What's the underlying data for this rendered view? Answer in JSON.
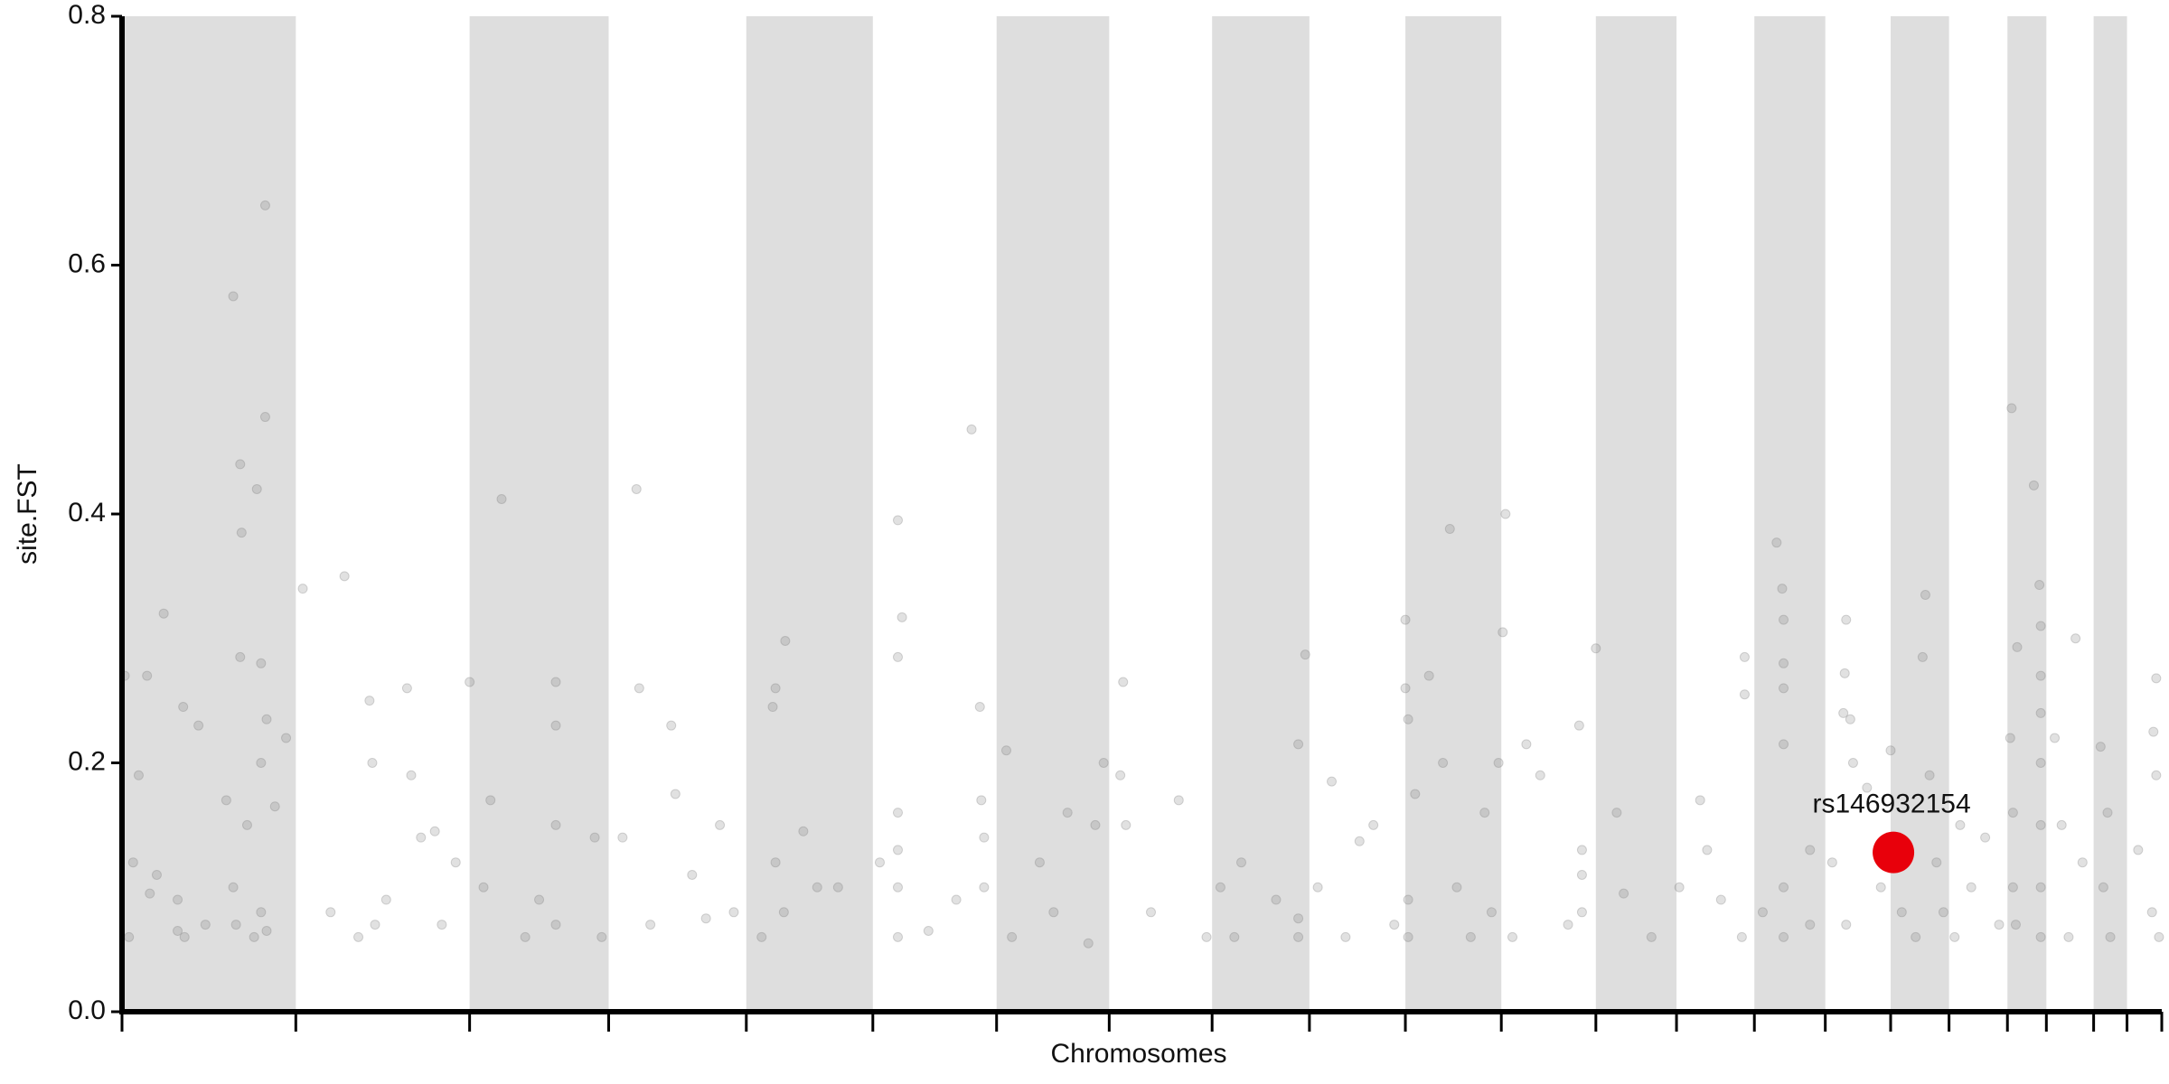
{
  "chart_data": {
    "type": "scatter",
    "xlabel": "Chromosomes",
    "ylabel": "site.FST",
    "xlim": [
      0,
      1467
    ],
    "ylim": [
      0,
      0.8
    ],
    "yticks": [
      {
        "value": 0,
        "label": "0.0"
      },
      0.2,
      0.4,
      0.6,
      0.8
    ],
    "xticks": [
      0,
      125,
      250,
      350,
      449,
      540,
      629,
      710,
      784,
      854,
      923,
      992,
      1060,
      1118,
      1174,
      1225,
      1272,
      1314,
      1356,
      1384,
      1418,
      1442,
      1467
    ],
    "band_color": "#dedede",
    "color": "#777777",
    "x": [
      2,
      5,
      8,
      12,
      18,
      25,
      30,
      40,
      44,
      55,
      45,
      80,
      85,
      86,
      85,
      97,
      100,
      103,
      103,
      104,
      118,
      80,
      82,
      100,
      104,
      95,
      60,
      40,
      20,
      110,
      100,
      90,
      75,
      130,
      160,
      178,
      180,
      182,
      205,
      208,
      215,
      225,
      240,
      170,
      190,
      230,
      150,
      250,
      273,
      265,
      312,
      312,
      312,
      312,
      290,
      340,
      345,
      260,
      300,
      370,
      372,
      380,
      395,
      398,
      410,
      430,
      440,
      360,
      420,
      470,
      477,
      468,
      476,
      470,
      460,
      500,
      515,
      490,
      558,
      561,
      558,
      558,
      558,
      558,
      558,
      545,
      580,
      600,
      620,
      611,
      617,
      618,
      636,
      620,
      640,
      660,
      680,
      700,
      670,
      695,
      720,
      718,
      722,
      706,
      740,
      760,
      780,
      790,
      800,
      805,
      846,
      851,
      846,
      830,
      846,
      860,
      890,
      900,
      915,
      880,
      870,
      923,
      923,
      925,
      930,
      925,
      925,
      955,
      950,
      960,
      970,
      940,
      995,
      993,
      1010,
      990,
      980,
      985,
      1000,
      1020,
      1040,
      1050,
      1060,
      1048,
      1050,
      1050,
      1075,
      1080,
      1100,
      1120,
      1135,
      1140,
      1150,
      1165,
      1195,
      1190,
      1194,
      1195,
      1195,
      1195,
      1167,
      1167,
      1214,
      1214,
      1195,
      1195,
      1180,
      1240,
      1239,
      1238,
      1243,
      1245,
      1230,
      1255,
      1265,
      1240,
      1272,
      1297,
      1295,
      1300,
      1280,
      1290,
      1305,
      1310,
      1322,
      1330,
      1340,
      1350,
      1318,
      1359,
      1363,
      1358,
      1360,
      1360,
      1362,
      1375,
      1379,
      1380,
      1380,
      1380,
      1380,
      1380,
      1380,
      1380,
      1405,
      1390,
      1395,
      1400,
      1410,
      1423,
      1428,
      1425,
      1430,
      1463,
      1461,
      1463,
      1450,
      1460,
      1465
    ],
    "values": [
      0.27,
      0.06,
      0.12,
      0.19,
      0.27,
      0.11,
      0.32,
      0.09,
      0.245,
      0.23,
      0.06,
      0.575,
      0.44,
      0.385,
      0.285,
      0.42,
      0.28,
      0.478,
      0.648,
      0.235,
      0.22,
      0.1,
      0.07,
      0.08,
      0.065,
      0.06,
      0.07,
      0.065,
      0.095,
      0.165,
      0.2,
      0.15,
      0.17,
      0.34,
      0.35,
      0.25,
      0.2,
      0.07,
      0.26,
      0.19,
      0.14,
      0.145,
      0.12,
      0.06,
      0.09,
      0.07,
      0.08,
      0.265,
      0.412,
      0.17,
      0.265,
      0.23,
      0.15,
      0.07,
      0.06,
      0.14,
      0.06,
      0.1,
      0.09,
      0.42,
      0.26,
      0.07,
      0.23,
      0.175,
      0.11,
      0.15,
      0.08,
      0.14,
      0.075,
      0.26,
      0.298,
      0.245,
      0.08,
      0.12,
      0.06,
      0.1,
      0.1,
      0.145,
      0.395,
      0.317,
      0.285,
      0.16,
      0.1,
      0.06,
      0.13,
      0.12,
      0.065,
      0.09,
      0.1,
      0.468,
      0.245,
      0.17,
      0.21,
      0.14,
      0.06,
      0.12,
      0.16,
      0.15,
      0.08,
      0.055,
      0.265,
      0.19,
      0.15,
      0.2,
      0.08,
      0.17,
      0.06,
      0.1,
      0.06,
      0.12,
      0.075,
      0.287,
      0.215,
      0.09,
      0.06,
      0.1,
      0.137,
      0.15,
      0.07,
      0.06,
      0.185,
      0.315,
      0.26,
      0.235,
      0.175,
      0.09,
      0.06,
      0.388,
      0.2,
      0.1,
      0.06,
      0.27,
      0.4,
      0.305,
      0.215,
      0.2,
      0.16,
      0.08,
      0.06,
      0.19,
      0.07,
      0.11,
      0.292,
      0.23,
      0.13,
      0.08,
      0.16,
      0.095,
      0.06,
      0.1,
      0.17,
      0.13,
      0.09,
      0.06,
      0.315,
      0.377,
      0.34,
      0.28,
      0.26,
      0.215,
      0.285,
      0.255,
      0.13,
      0.07,
      0.1,
      0.06,
      0.08,
      0.315,
      0.272,
      0.24,
      0.235,
      0.2,
      0.12,
      0.18,
      0.1,
      0.07,
      0.21,
      0.335,
      0.285,
      0.19,
      0.08,
      0.06,
      0.12,
      0.08,
      0.15,
      0.1,
      0.14,
      0.07,
      0.06,
      0.485,
      0.293,
      0.22,
      0.16,
      0.1,
      0.07,
      0.423,
      0.343,
      0.31,
      0.27,
      0.24,
      0.2,
      0.15,
      0.1,
      0.06,
      0.3,
      0.22,
      0.15,
      0.06,
      0.12,
      0.213,
      0.16,
      0.1,
      0.06,
      0.268,
      0.225,
      0.19,
      0.13,
      0.08,
      0.06
    ],
    "highlight": {
      "label": "rs146932154",
      "x": 1274,
      "value": 0.128,
      "color": "#e8000b"
    }
  }
}
